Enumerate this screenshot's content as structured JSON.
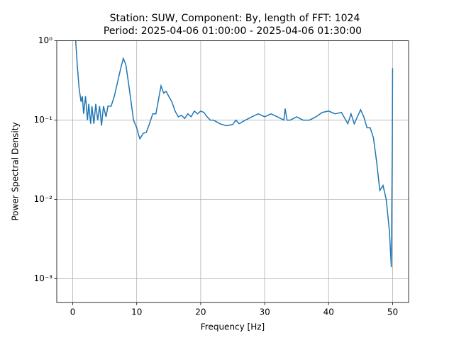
{
  "chart_data": {
    "type": "line",
    "title": "Station: SUW, Component: By, length of FFT: 1024",
    "subtitle": "Period: 2025-04-06 01:00:00 - 2025-04-06 01:30:00",
    "x_label": "Frequency [Hz]",
    "y_label": "Power Spectral Density",
    "log_y": true,
    "grid": true,
    "xlim": [
      -2.5,
      52.5
    ],
    "xticks": [
      0,
      10,
      20,
      30,
      40,
      50
    ],
    "ylim": [
      0.0005,
      1
    ],
    "yticks": [
      {
        "value": 0.001,
        "label": "10⁻³"
      },
      {
        "value": 0.01,
        "label": "10⁻²"
      },
      {
        "value": 0.1,
        "label": "10⁻¹"
      },
      {
        "value": 1,
        "label": "10⁰"
      }
    ],
    "x": [
      0.4,
      0.7,
      1.0,
      1.3,
      1.5,
      1.7,
      2.0,
      2.3,
      2.5,
      2.8,
      3.0,
      3.3,
      3.6,
      3.9,
      4.2,
      4.5,
      4.8,
      5.2,
      5.5,
      6.0,
      6.5,
      7.0,
      7.5,
      7.9,
      8.3,
      8.7,
      9.0,
      9.5,
      10.0,
      10.3,
      10.5,
      11.0,
      11.5,
      12.0,
      12.5,
      13.0,
      13.5,
      13.8,
      14.2,
      14.6,
      15.0,
      15.5,
      16.0,
      16.5,
      17.0,
      17.5,
      18.0,
      18.5,
      19.0,
      19.5,
      20.0,
      20.5,
      21.0,
      21.5,
      22.0,
      22.5,
      23.0,
      24.0,
      25.0,
      25.5,
      26.0,
      27.0,
      28.0,
      29.0,
      30.0,
      31.0,
      32.0,
      33.0,
      33.2,
      33.5,
      34.0,
      35.0,
      36.0,
      37.0,
      38.0,
      39.0,
      40.0,
      41.0,
      42.0,
      43.0,
      43.5,
      44.0,
      45.0,
      45.5,
      46.0,
      46.5,
      47.0,
      47.5,
      48.0,
      48.5,
      49.0,
      49.5,
      49.8,
      49.95,
      50.0
    ],
    "series": [
      {
        "name": "By",
        "color": "#1f77b4",
        "values": [
          1.2,
          0.5,
          0.25,
          0.17,
          0.2,
          0.12,
          0.2,
          0.1,
          0.16,
          0.09,
          0.15,
          0.09,
          0.16,
          0.1,
          0.15,
          0.085,
          0.15,
          0.11,
          0.15,
          0.15,
          0.2,
          0.3,
          0.45,
          0.6,
          0.5,
          0.3,
          0.2,
          0.1,
          0.08,
          0.065,
          0.058,
          0.068,
          0.07,
          0.09,
          0.12,
          0.12,
          0.2,
          0.27,
          0.22,
          0.23,
          0.2,
          0.17,
          0.13,
          0.11,
          0.115,
          0.105,
          0.12,
          0.11,
          0.13,
          0.12,
          0.13,
          0.125,
          0.11,
          0.1,
          0.1,
          0.095,
          0.09,
          0.085,
          0.088,
          0.1,
          0.09,
          0.1,
          0.11,
          0.12,
          0.11,
          0.12,
          0.11,
          0.1,
          0.14,
          0.1,
          0.1,
          0.11,
          0.1,
          0.1,
          0.11,
          0.125,
          0.13,
          0.12,
          0.125,
          0.09,
          0.12,
          0.09,
          0.135,
          0.11,
          0.08,
          0.08,
          0.06,
          0.03,
          0.013,
          0.015,
          0.01,
          0.004,
          0.0014,
          0.05,
          0.45
        ]
      }
    ]
  }
}
